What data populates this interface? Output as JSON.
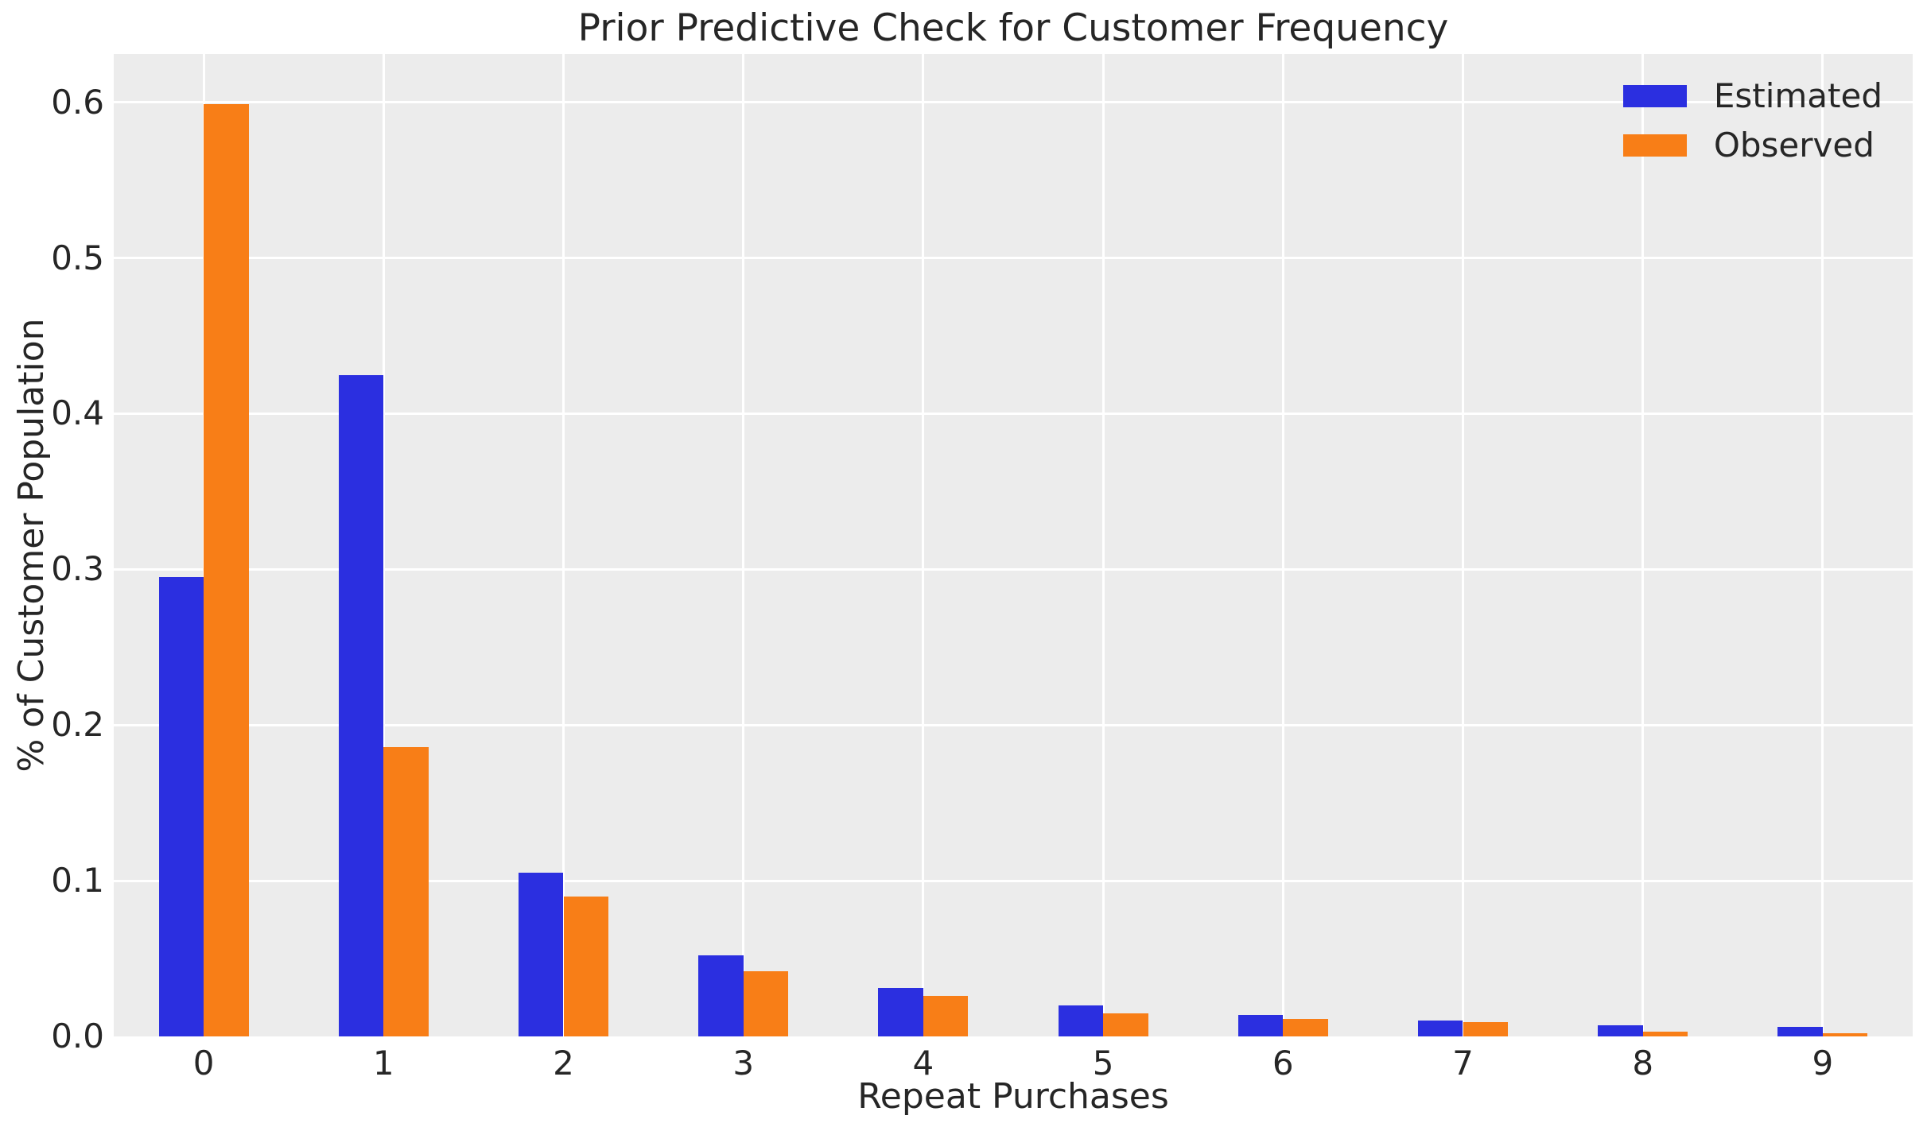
{
  "figure": {
    "background": "#ffffff",
    "plot_background": "#ececec",
    "grid_color": "#ffffff",
    "text_color": "#262626"
  },
  "chart_data": {
    "type": "bar",
    "title": "Prior Predictive Check for Customer Frequency",
    "xlabel": "Repeat Purchases",
    "ylabel": "% of Customer Population",
    "categories": [
      "0",
      "1",
      "2",
      "3",
      "4",
      "5",
      "6",
      "7",
      "8",
      "9"
    ],
    "series": [
      {
        "name": "Estimated",
        "color": "#2b2fe0",
        "values": [
          0.295,
          0.425,
          0.105,
          0.052,
          0.031,
          0.02,
          0.014,
          0.01,
          0.007,
          0.006
        ]
      },
      {
        "name": "Observed",
        "color": "#f87e17",
        "values": [
          0.599,
          0.186,
          0.09,
          0.042,
          0.026,
          0.015,
          0.011,
          0.009,
          0.003,
          0.002
        ]
      }
    ],
    "x_range": [
      -0.5,
      9.5
    ],
    "ylim": [
      0,
      0.631
    ],
    "y_ticks": [
      "0.0",
      "0.1",
      "0.2",
      "0.3",
      "0.4",
      "0.5",
      "0.6"
    ],
    "bar_width_units": 0.25,
    "grid": true,
    "legend_position": "upper right",
    "legend_labels": [
      "Estimated",
      "Observed"
    ]
  }
}
